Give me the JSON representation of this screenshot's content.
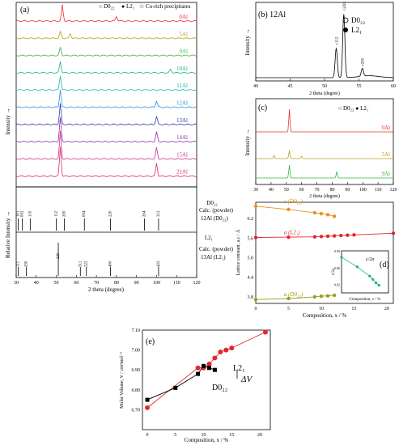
{
  "panel_a": {
    "tag": "(a)",
    "legend": {
      "d022": "○ D0₂₂",
      "l21": "● L2₁",
      "co": "☆ Co-rich precipitates"
    },
    "ylabel_top": "Intensity →",
    "ylabel_bottom": "Relative Intensity →",
    "xlabel": "2 theta (degree)",
    "xticks": [
      "30",
      "40",
      "50",
      "60",
      "70",
      "80",
      "90",
      "100",
      "110",
      "120"
    ],
    "calc_d022": {
      "title": "D0₂₂",
      "label1": "Calc. (powder)",
      "label2": "12Al (D0₂₂)"
    },
    "calc_l21": {
      "title": "L2₁",
      "label1": "Calc. (powder)",
      "label2": "13Al (L2₁)"
    }
  },
  "panel_b": {
    "tag": "(b) 12Al",
    "xlabel": "2 theta (degree)",
    "ylabel": "Intensity →",
    "legend_d022": "D0₂₂",
    "legend_l21": "L2₁",
    "xticks": [
      "40",
      "45",
      "50",
      "55",
      "60"
    ]
  },
  "panel_c": {
    "tag": "(c)",
    "xlabel": "2 theta (degree)",
    "ylabel": "Intensity →",
    "legend": "○ D0₂₂  ● L2₁",
    "xticks": [
      "30",
      "40",
      "50",
      "60",
      "70",
      "80",
      "90",
      "100",
      "110",
      "120"
    ]
  },
  "panel_d": {
    "tag": "(d)",
    "xlabel": "Composition, x / %",
    "ylabel": "Lattice constant, a,c / Å",
    "inset_xlabel": "Composition, x / %",
    "inset_ylabel": "c/2a",
    "inset_label": "c/2a"
  },
  "panel_e": {
    "tag": "(e)",
    "xlabel": "Composition, x / %",
    "ylabel": "Molar Volume, V / cm³mol⁻¹",
    "label_l21": "L2₁",
    "label_d022": "D0₂₂",
    "label_dv": "ΔV"
  },
  "chart_data": [
    {
      "type": "line",
      "title": "",
      "panel": "a",
      "xlabel": "2 theta (degree)",
      "ylabel": "Intensity →",
      "xlim": [
        30,
        120
      ],
      "series": [
        {
          "name": "0Al",
          "color": "#e8322c"
        },
        {
          "name": "5Al",
          "color": "#b6a21a"
        },
        {
          "name": "9Al",
          "color": "#3ab54a"
        },
        {
          "name": "10Al",
          "color": "#22b07c"
        },
        {
          "name": "11Al",
          "color": "#1ab7b0"
        },
        {
          "name": "12Al",
          "color": "#2a8fd6"
        },
        {
          "name": "13Al",
          "color": "#2f3bb5"
        },
        {
          "name": "14Al",
          "color": "#8a2fa8"
        },
        {
          "name": "15Al",
          "color": "#cc2f8c"
        },
        {
          "name": "21Al",
          "color": "#e0286c"
        }
      ],
      "calc_d022_peaks": [
        {
          "x": 31,
          "label": "101"
        },
        {
          "x": 33,
          "label": "002"
        },
        {
          "x": 37,
          "label": "110"
        },
        {
          "x": 50,
          "label": "112"
        },
        {
          "x": 54,
          "label": "200"
        },
        {
          "x": 64,
          "label": "004"
        },
        {
          "x": 77,
          "label": "220"
        },
        {
          "x": 94,
          "label": "204"
        },
        {
          "x": 101,
          "label": "312"
        }
      ],
      "calc_l21_peaks": [
        {
          "x": 31,
          "label": "111"
        },
        {
          "x": 35,
          "label": "200"
        },
        {
          "x": 51,
          "label": "220"
        },
        {
          "x": 62,
          "label": "311"
        },
        {
          "x": 65,
          "label": "222"
        },
        {
          "x": 77,
          "label": "400"
        },
        {
          "x": 101,
          "label": "422"
        }
      ]
    },
    {
      "type": "line",
      "title": "",
      "panel": "b",
      "xlim": [
        40,
        60
      ],
      "peaks": [
        {
          "x": 51.7,
          "label": "112",
          "h": 0.45
        },
        {
          "x": 52.8,
          "label": "220",
          "h": 0.98
        },
        {
          "x": 55.5,
          "label": "200",
          "h": 0.12
        }
      ]
    },
    {
      "type": "line",
      "title": "",
      "panel": "c",
      "xlim": [
        30,
        120
      ],
      "series": [
        {
          "name": "0Al",
          "color": "#e8322c"
        },
        {
          "name": "5Al",
          "color": "#b6a21a"
        },
        {
          "name": "9Al",
          "color": "#3ab54a"
        }
      ]
    },
    {
      "type": "scatter",
      "title": "",
      "panel": "d",
      "xlabel": "Composition, x / %",
      "ylabel": "Lattice constant, a,c / Å",
      "xlim": [
        0,
        21
      ],
      "ylim": [
        3.6,
        6.7
      ],
      "series": [
        {
          "name": "c (D0₂₂)",
          "color": "#e8921e",
          "x": [
            0,
            5,
            9,
            10,
            11,
            12
          ],
          "y": [
            6.58,
            6.48,
            6.38,
            6.35,
            6.32,
            6.27
          ]
        },
        {
          "name": "a (L2₁)",
          "color": "#e0282c",
          "x": [
            0,
            5,
            9,
            10,
            11,
            12,
            13,
            14,
            15,
            21
          ],
          "y": [
            5.62,
            5.63,
            5.64,
            5.65,
            5.66,
            5.67,
            5.68,
            5.69,
            5.7,
            5.75
          ]
        },
        {
          "name": "a (D0₂₂)",
          "color": "#9aa01e",
          "x": [
            0,
            5,
            9,
            10,
            11,
            12
          ],
          "y": [
            3.72,
            3.75,
            3.8,
            3.82,
            3.83,
            3.85
          ]
        }
      ],
      "inset": {
        "label": "c/2a",
        "color": "#22b07c",
        "xlim": [
          0,
          15
        ],
        "ylim": [
          0.8,
          0.9
        ],
        "x": [
          0,
          5,
          9,
          10,
          11,
          12
        ],
        "y": [
          0.885,
          0.862,
          0.84,
          0.832,
          0.824,
          0.818
        ]
      }
    },
    {
      "type": "scatter",
      "title": "",
      "panel": "e",
      "xlabel": "Composition, x / %",
      "ylabel": "Molar Volume, V / cm³mol⁻¹",
      "xlim": [
        0,
        21
      ],
      "ylim": [
        6.6,
        7.1
      ],
      "series": [
        {
          "name": "L2₁",
          "color": "#e0282c",
          "x": [
            0,
            9,
            10,
            11,
            12,
            13,
            14,
            15,
            21
          ],
          "y": [
            6.71,
            6.91,
            6.91,
            6.93,
            6.96,
            6.99,
            7.0,
            7.01,
            7.09
          ]
        },
        {
          "name": "D0₂₂",
          "color": "#000000",
          "x": [
            0,
            5,
            9,
            10,
            11,
            12
          ],
          "y": [
            6.75,
            6.81,
            6.88,
            6.92,
            6.91,
            6.9
          ]
        }
      ]
    }
  ]
}
